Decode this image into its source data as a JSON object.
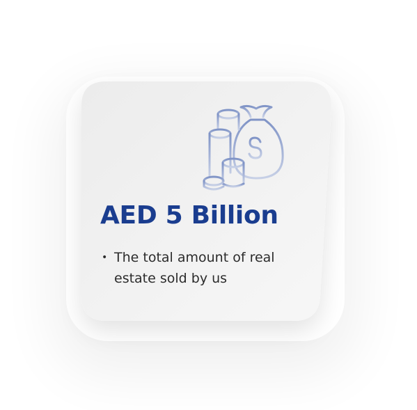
{
  "card": {
    "icon": "money-bag-and-coins-icon",
    "headline": "AED 5 Billion",
    "bullets": [
      {
        "text": "The total amount of real estate sold by us"
      }
    ]
  },
  "colors": {
    "headline": "#1a3d8f",
    "icon_stroke": "#8fa3cf",
    "card_background": "#efefef",
    "body_text": "#2b2b2b"
  }
}
